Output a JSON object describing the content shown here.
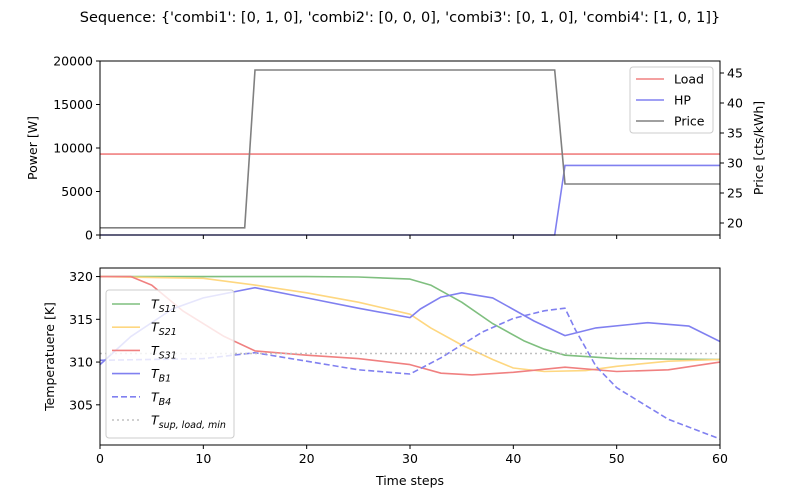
{
  "title": "Sequence: {'combi1': [0, 1, 0], 'combi2': [0, 0, 0], 'combi3': [0, 1, 0], 'combi4': [1, 0, 1]}",
  "chart_data": [
    {
      "type": "line",
      "ylabel": "Power [W]",
      "y2label": "Price [cts/kWh]",
      "xlim": [
        0,
        60
      ],
      "ylim": [
        0,
        20000
      ],
      "y2lim": [
        18,
        47
      ],
      "yticks": [
        "0",
        "5000",
        "10000",
        "15000",
        "20000"
      ],
      "y2ticks": [
        "20",
        "25",
        "30",
        "35",
        "40",
        "45"
      ],
      "legend_position": "upper right",
      "series": [
        {
          "name": "Load",
          "axis": "left",
          "color": "#f08080",
          "dash": false,
          "points": [
            [
              0,
              9300
            ],
            [
              60,
              9300
            ]
          ]
        },
        {
          "name": "HP",
          "axis": "left",
          "color": "#8080f0",
          "dash": false,
          "points": [
            [
              0,
              0
            ],
            [
              44,
              0
            ],
            [
              45,
              8000
            ],
            [
              60,
              8000
            ]
          ]
        },
        {
          "name": "Price",
          "axis": "right",
          "color": "#808080",
          "dash": false,
          "points": [
            [
              0,
              19.2
            ],
            [
              14,
              19.2
            ],
            [
              15,
              45.5
            ],
            [
              44,
              45.5
            ],
            [
              45,
              26.5
            ],
            [
              60,
              26.5
            ]
          ]
        }
      ]
    },
    {
      "type": "line",
      "xlabel": "Time steps",
      "ylabel": "Temperatuere [K]",
      "xlim": [
        0,
        60
      ],
      "ylim": [
        300.3,
        321
      ],
      "xticks": [
        "0",
        "10",
        "20",
        "30",
        "40",
        "50",
        "60"
      ],
      "yticks": [
        "305",
        "310",
        "315",
        "320"
      ],
      "legend_position": "lower left",
      "series": [
        {
          "name": "T_S11",
          "legend_main": "T",
          "legend_sub": "S11",
          "color": "#7fbf7f",
          "dash": false,
          "points": [
            [
              0,
              320
            ],
            [
              10,
              320
            ],
            [
              20,
              320
            ],
            [
              25,
              319.95
            ],
            [
              30,
              319.7
            ],
            [
              32,
              319
            ],
            [
              35,
              317
            ],
            [
              38,
              314.5
            ],
            [
              41,
              312.5
            ],
            [
              43,
              311.5
            ],
            [
              45,
              310.8
            ],
            [
              50,
              310.4
            ],
            [
              60,
              310.3
            ]
          ]
        },
        {
          "name": "T_S21",
          "legend_main": "T",
          "legend_sub": "S21",
          "color": "#fed780",
          "dash": false,
          "points": [
            [
              0,
              320
            ],
            [
              10,
              319.8
            ],
            [
              15,
              319
            ],
            [
              20,
              318.1
            ],
            [
              25,
              317
            ],
            [
              30,
              315.6
            ],
            [
              32,
              314
            ],
            [
              35,
              312
            ],
            [
              38,
              310.3
            ],
            [
              40,
              309.3
            ],
            [
              43,
              308.9
            ],
            [
              47,
              309
            ],
            [
              50,
              309.5
            ],
            [
              55,
              310.1
            ],
            [
              60,
              310.3
            ]
          ]
        },
        {
          "name": "T_S31",
          "legend_main": "T",
          "legend_sub": "S31",
          "color": "#f08080",
          "dash": false,
          "points": [
            [
              0,
              320
            ],
            [
              3,
              320
            ],
            [
              5,
              319
            ],
            [
              8,
              316
            ],
            [
              12,
              313
            ],
            [
              15,
              311.3
            ],
            [
              20,
              310.8
            ],
            [
              25,
              310.4
            ],
            [
              30,
              309.7
            ],
            [
              33,
              308.7
            ],
            [
              36,
              308.5
            ],
            [
              40,
              308.8
            ],
            [
              45,
              309.4
            ],
            [
              50,
              308.9
            ],
            [
              55,
              309.1
            ],
            [
              60,
              310
            ]
          ]
        },
        {
          "name": "T_B1",
          "legend_main": "T",
          "legend_sub": "B1",
          "color": "#8080f0",
          "dash": false,
          "points": [
            [
              0,
              309.7
            ],
            [
              3,
              313
            ],
            [
              7,
              316.2
            ],
            [
              10,
              317.5
            ],
            [
              15,
              318.7
            ],
            [
              20,
              317.5
            ],
            [
              25,
              316.3
            ],
            [
              30,
              315.2
            ],
            [
              31,
              316.2
            ],
            [
              33,
              317.6
            ],
            [
              35,
              318.1
            ],
            [
              38,
              317.5
            ],
            [
              42,
              314.8
            ],
            [
              45,
              313.1
            ],
            [
              48,
              314
            ],
            [
              53,
              314.6
            ],
            [
              57,
              314.2
            ],
            [
              60,
              312.4
            ]
          ]
        },
        {
          "name": "T_B4",
          "legend_main": "T",
          "legend_sub": "B4",
          "color": "#8080f0",
          "dash": true,
          "points": [
            [
              0,
              310.2
            ],
            [
              10,
              310.4
            ],
            [
              15,
              311.1
            ],
            [
              20,
              310.1
            ],
            [
              25,
              309.1
            ],
            [
              30,
              308.6
            ],
            [
              33,
              310.5
            ],
            [
              37,
              313.5
            ],
            [
              40,
              315.1
            ],
            [
              43,
              316
            ],
            [
              45,
              316.3
            ],
            [
              46,
              313.8
            ],
            [
              48,
              309.5
            ],
            [
              50,
              307
            ],
            [
              55,
              303.3
            ],
            [
              60,
              301
            ]
          ]
        },
        {
          "name": "T_sup,load,min",
          "legend_main": "T",
          "legend_sub": "sup, load, min",
          "color": "#c0c0c0",
          "dash": "dotted",
          "points": [
            [
              0,
              311
            ],
            [
              60,
              311
            ]
          ]
        }
      ]
    }
  ]
}
